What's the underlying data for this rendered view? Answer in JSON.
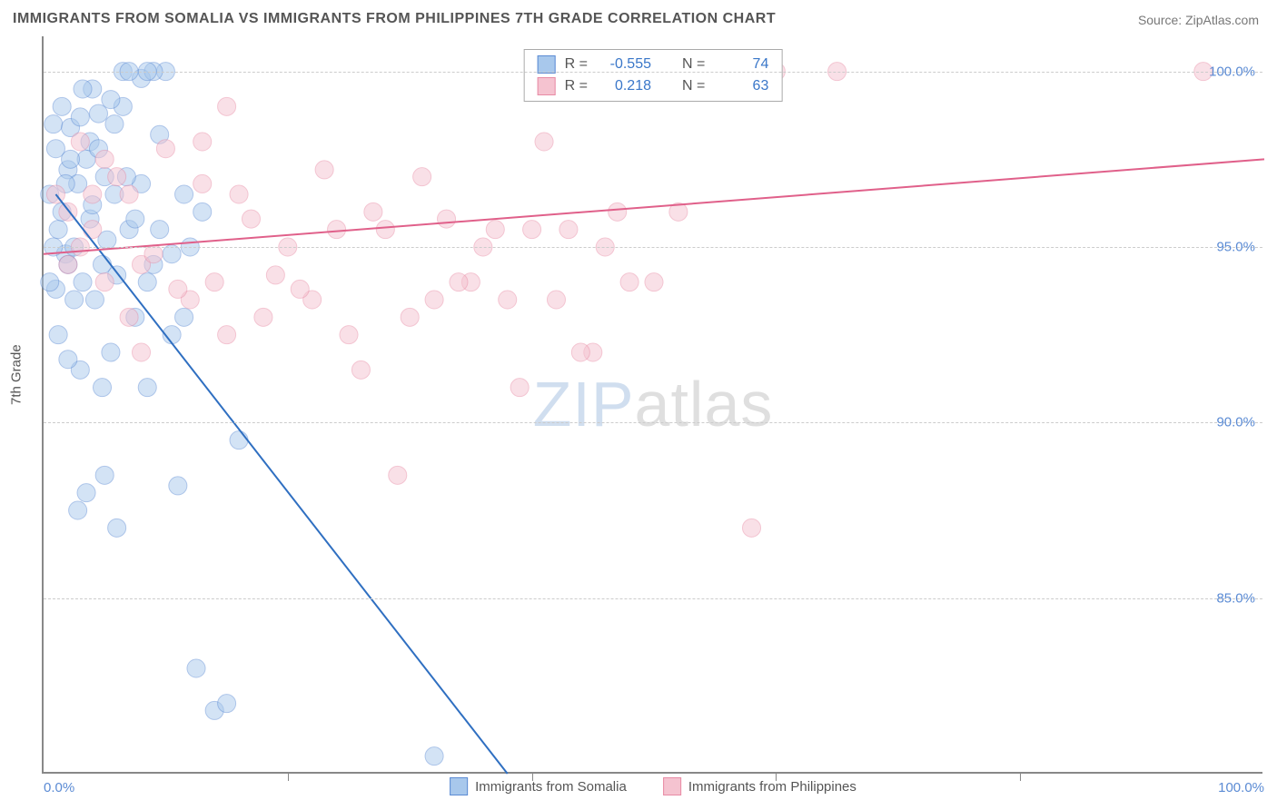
{
  "title": "IMMIGRANTS FROM SOMALIA VS IMMIGRANTS FROM PHILIPPINES 7TH GRADE CORRELATION CHART",
  "source": "Source: ZipAtlas.com",
  "ylabel": "7th Grade",
  "watermark_zip": "ZIP",
  "watermark_atlas": "atlas",
  "chart": {
    "type": "scatter",
    "background_color": "#ffffff",
    "grid_color": "#cccccc",
    "axis_color": "#888888",
    "xlim": [
      0,
      100
    ],
    "ylim": [
      80,
      101
    ],
    "y_ticks": [
      85.0,
      90.0,
      95.0,
      100.0
    ],
    "y_tick_labels": [
      "85.0%",
      "90.0%",
      "95.0%",
      "100.0%"
    ],
    "x_ticks": [
      0,
      20,
      40,
      60,
      80,
      100
    ],
    "x_tick_labels_visible": [
      "0.0%",
      "100.0%"
    ],
    "marker_radius": 10,
    "marker_opacity": 0.5,
    "line_width": 2,
    "series": [
      {
        "name": "Immigrants from Somalia",
        "color_fill": "#a8c8ec",
        "color_stroke": "#5b8bd4",
        "line_color": "#2f6fc1",
        "R": "-0.555",
        "N": "74",
        "trend": {
          "x1": 1,
          "y1": 96.5,
          "x2": 38,
          "y2": 80
        },
        "points": [
          [
            0.5,
            96.5
          ],
          [
            0.8,
            98.5
          ],
          [
            1.0,
            97.8
          ],
          [
            1.2,
            95.5
          ],
          [
            1.5,
            96.0
          ],
          [
            1.8,
            94.8
          ],
          [
            2.0,
            97.2
          ],
          [
            2.2,
            98.4
          ],
          [
            2.5,
            95.0
          ],
          [
            2.8,
            96.8
          ],
          [
            3.0,
            98.7
          ],
          [
            3.2,
            94.0
          ],
          [
            3.5,
            97.5
          ],
          [
            3.8,
            95.8
          ],
          [
            4.0,
            96.2
          ],
          [
            4.2,
            93.5
          ],
          [
            4.5,
            98.8
          ],
          [
            4.8,
            94.5
          ],
          [
            5.0,
            97.0
          ],
          [
            5.2,
            95.2
          ],
          [
            5.5,
            92.0
          ],
          [
            5.8,
            96.5
          ],
          [
            6.0,
            94.2
          ],
          [
            6.5,
            99.0
          ],
          [
            7.0,
            95.5
          ],
          [
            7.5,
            93.0
          ],
          [
            8.0,
            96.8
          ],
          [
            8.5,
            91.0
          ],
          [
            9.0,
            94.5
          ],
          [
            9.5,
            98.2
          ],
          [
            10.0,
            100.0
          ],
          [
            10.5,
            92.5
          ],
          [
            11.0,
            88.2
          ],
          [
            11.5,
            93.0
          ],
          [
            12.0,
            95.0
          ],
          [
            12.5,
            83.0
          ],
          [
            13.0,
            96.0
          ],
          [
            14.0,
            81.8
          ],
          [
            15.0,
            82.0
          ],
          [
            16.0,
            89.5
          ],
          [
            4.0,
            99.5
          ],
          [
            5.5,
            99.2
          ],
          [
            6.5,
            100.0
          ],
          [
            8.0,
            99.8
          ],
          [
            9.0,
            100.0
          ],
          [
            2.5,
            93.5
          ],
          [
            3.0,
            91.5
          ],
          [
            4.8,
            91.0
          ],
          [
            2.0,
            94.5
          ],
          [
            1.0,
            93.8
          ],
          [
            6.0,
            87.0
          ],
          [
            3.5,
            88.0
          ],
          [
            2.8,
            87.5
          ],
          [
            5.0,
            88.5
          ],
          [
            1.8,
            96.8
          ],
          [
            2.2,
            97.5
          ],
          [
            3.8,
            98.0
          ],
          [
            4.5,
            97.8
          ],
          [
            5.8,
            98.5
          ],
          [
            6.8,
            97.0
          ],
          [
            7.5,
            95.8
          ],
          [
            8.5,
            94.0
          ],
          [
            9.5,
            95.5
          ],
          [
            10.5,
            94.8
          ],
          [
            11.5,
            96.5
          ],
          [
            7.0,
            100.0
          ],
          [
            8.5,
            100.0
          ],
          [
            1.5,
            99.0
          ],
          [
            3.2,
            99.5
          ],
          [
            0.5,
            94.0
          ],
          [
            1.2,
            92.5
          ],
          [
            2.0,
            91.8
          ],
          [
            32.0,
            80.5
          ],
          [
            0.8,
            95.0
          ]
        ]
      },
      {
        "name": "Immigrants from Philippines",
        "color_fill": "#f5c3d0",
        "color_stroke": "#e88ba5",
        "line_color": "#e0608a",
        "R": "0.218",
        "N": "63",
        "trend": {
          "x1": 0,
          "y1": 94.8,
          "x2": 100,
          "y2": 97.5
        },
        "points": [
          [
            2,
            96.0
          ],
          [
            4,
            95.5
          ],
          [
            6,
            97.0
          ],
          [
            8,
            94.5
          ],
          [
            10,
            97.8
          ],
          [
            12,
            93.5
          ],
          [
            14,
            94.0
          ],
          [
            16,
            96.5
          ],
          [
            18,
            93.0
          ],
          [
            20,
            95.0
          ],
          [
            22,
            93.5
          ],
          [
            24,
            95.5
          ],
          [
            26,
            91.5
          ],
          [
            28,
            95.5
          ],
          [
            30,
            93.0
          ],
          [
            31,
            97.0
          ],
          [
            33,
            95.8
          ],
          [
            35,
            94.0
          ],
          [
            37,
            95.5
          ],
          [
            39,
            91.0
          ],
          [
            41,
            98.0
          ],
          [
            43,
            95.5
          ],
          [
            45,
            92.0
          ],
          [
            47,
            96.0
          ],
          [
            55,
            100.0
          ],
          [
            58,
            87.0
          ],
          [
            60,
            100.0
          ],
          [
            65,
            100.0
          ],
          [
            95,
            100.0
          ],
          [
            3,
            98.0
          ],
          [
            5,
            97.5
          ],
          [
            7,
            96.5
          ],
          [
            9,
            94.8
          ],
          [
            11,
            93.8
          ],
          [
            13,
            96.8
          ],
          [
            15,
            92.5
          ],
          [
            17,
            95.8
          ],
          [
            19,
            94.2
          ],
          [
            21,
            93.8
          ],
          [
            23,
            97.2
          ],
          [
            25,
            92.5
          ],
          [
            27,
            96.0
          ],
          [
            29,
            88.5
          ],
          [
            32,
            93.5
          ],
          [
            34,
            94.0
          ],
          [
            36,
            95.0
          ],
          [
            38,
            93.5
          ],
          [
            40,
            95.5
          ],
          [
            42,
            93.5
          ],
          [
            44,
            92.0
          ],
          [
            46,
            95.0
          ],
          [
            48,
            94.0
          ],
          [
            15,
            99.0
          ],
          [
            13,
            98.0
          ],
          [
            1,
            96.5
          ],
          [
            3,
            95.0
          ],
          [
            5,
            94.0
          ],
          [
            7,
            93.0
          ],
          [
            8,
            92.0
          ],
          [
            50,
            94.0
          ],
          [
            52,
            96.0
          ],
          [
            2,
            94.5
          ],
          [
            4,
            96.5
          ]
        ]
      }
    ]
  },
  "legend": {
    "r_label": "R =",
    "n_label": "N ="
  }
}
